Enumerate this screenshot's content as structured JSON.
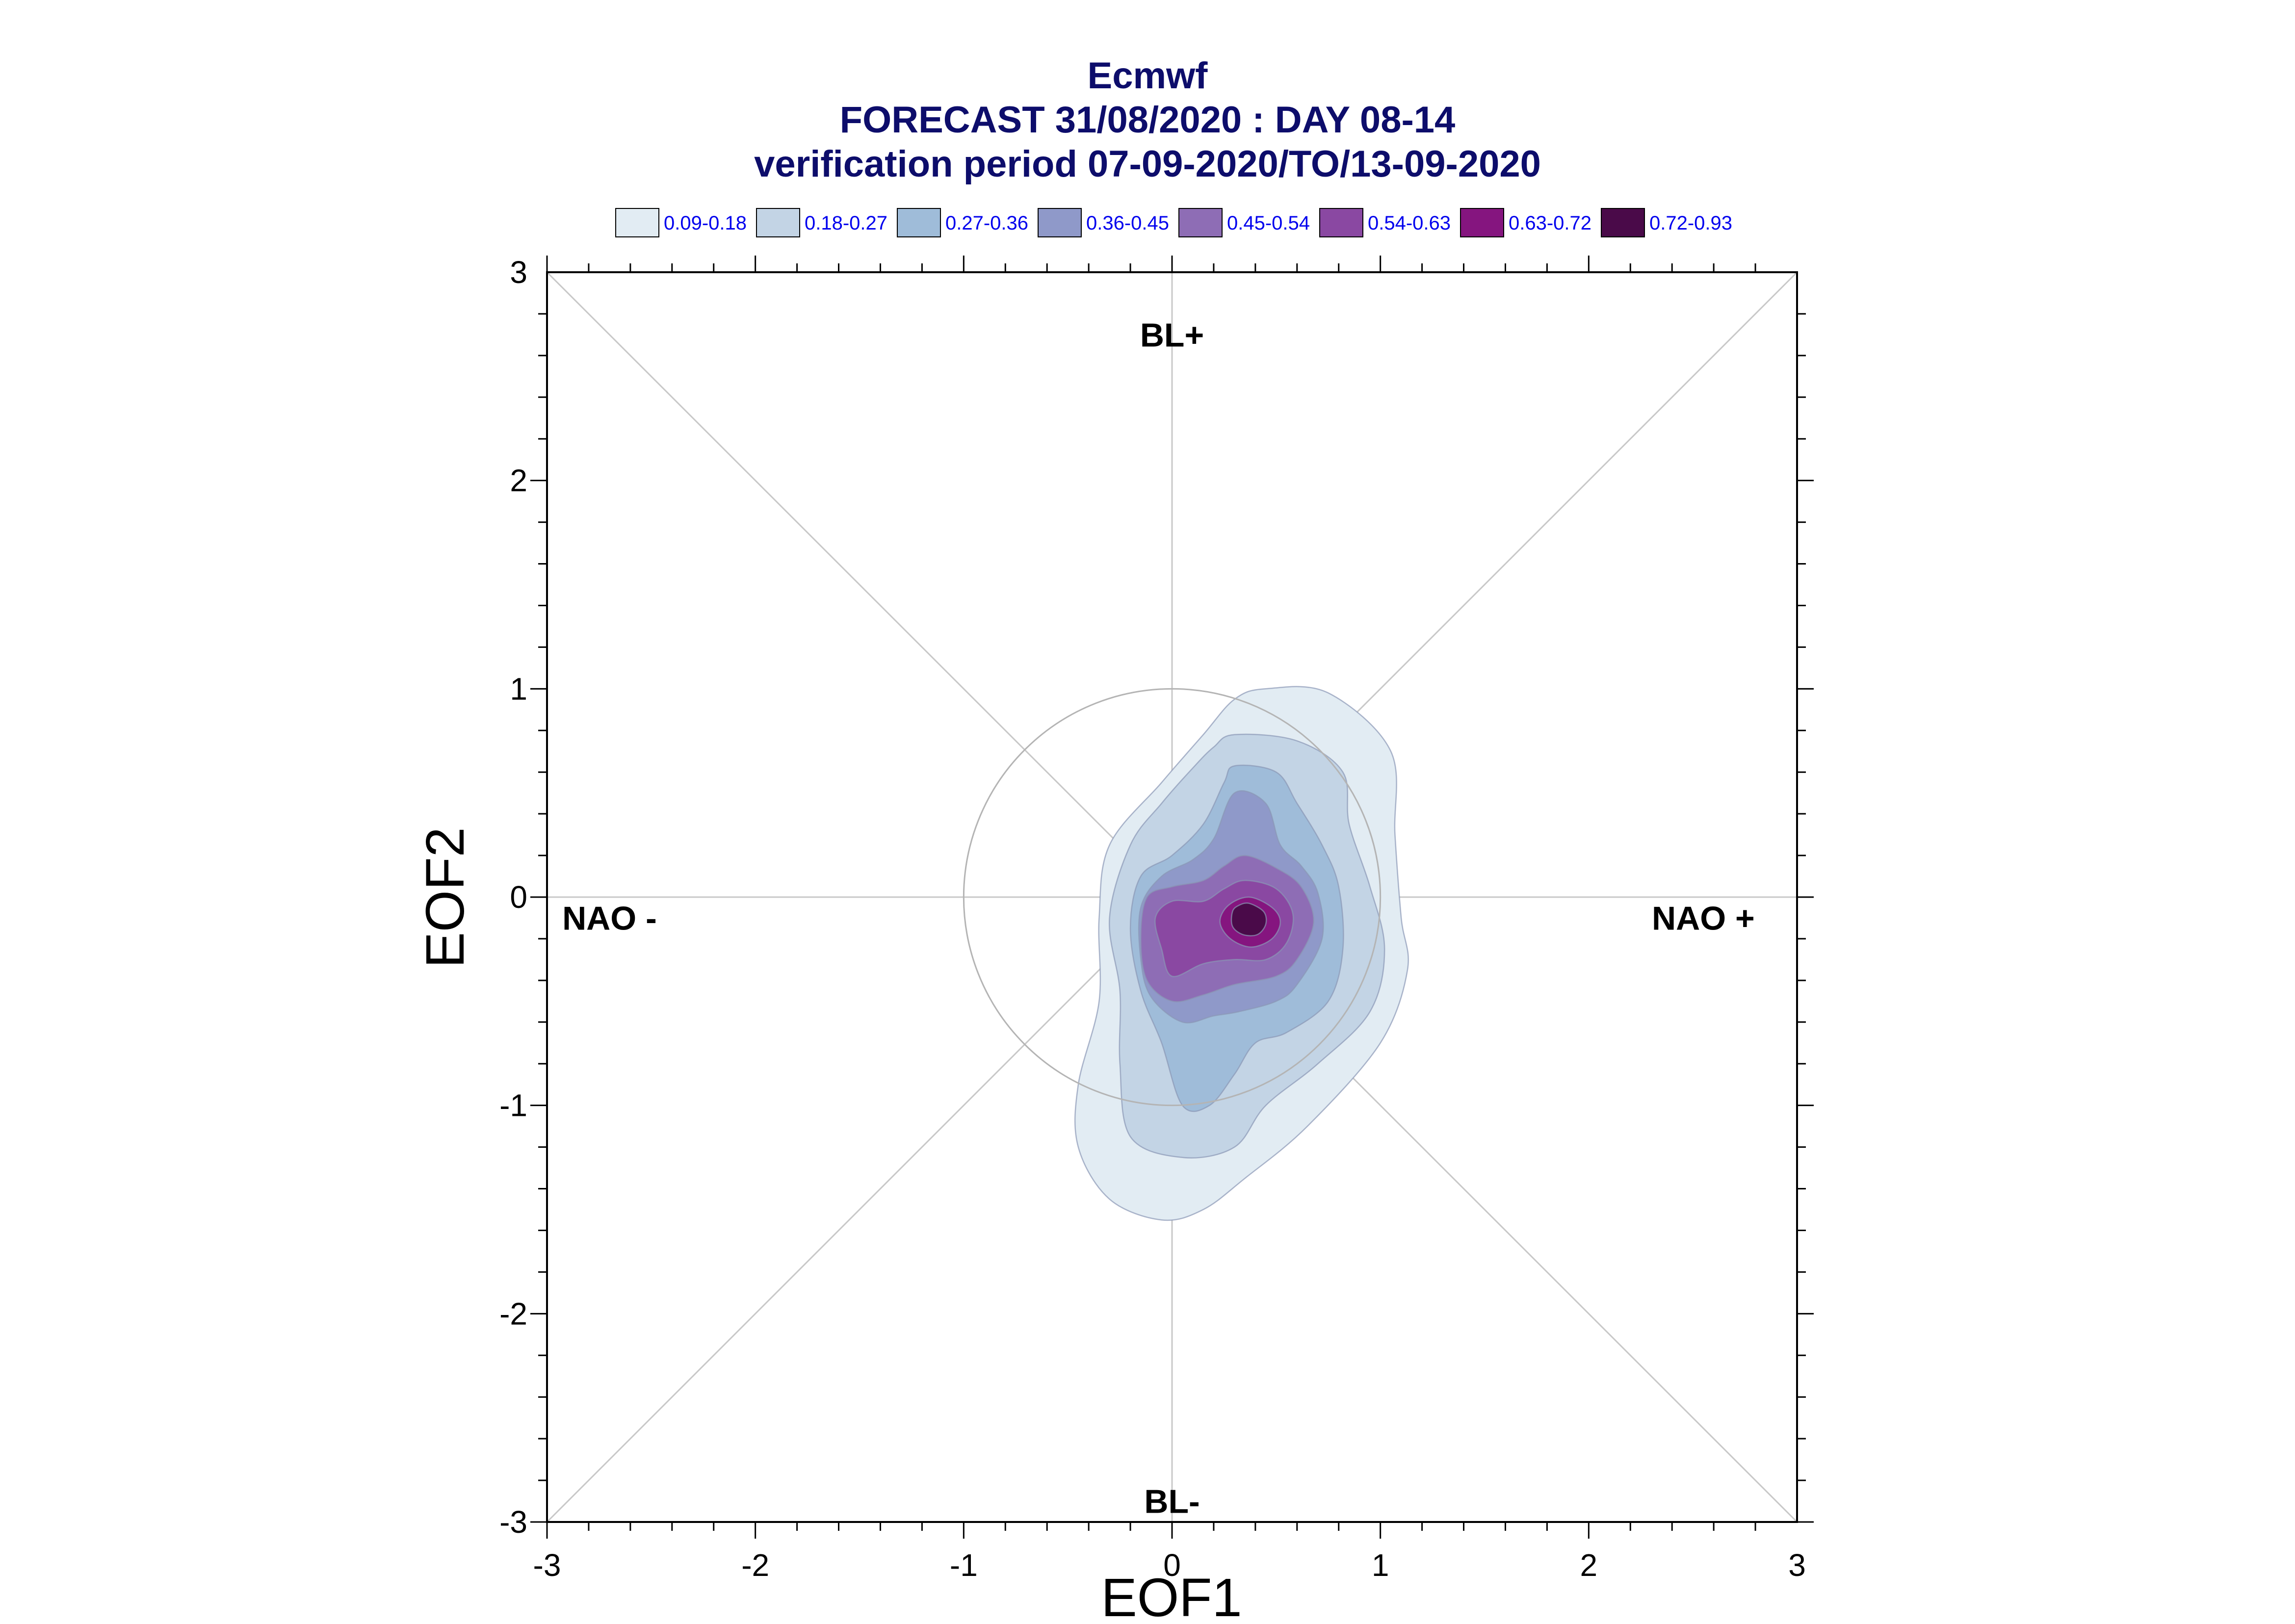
{
  "titles": [
    "Ecmwf",
    "FORECAST 31/08/2020 : DAY 08-14",
    "verification period 07-09-2020/TO/13-09-2020"
  ],
  "chart_data": {
    "type": "contour",
    "xlabel": "EOF1",
    "ylabel": "EOF2",
    "xlim": [
      -3,
      3
    ],
    "ylim": [
      -3,
      3
    ],
    "x_ticks": [
      "-3",
      "-2",
      "-1",
      "0",
      "1",
      "2",
      "3"
    ],
    "y_ticks": [
      "3",
      "2",
      "1",
      "0",
      "-1",
      "-2",
      "-3"
    ],
    "grid": false,
    "reference_circle_radius": 1,
    "regimes": [
      {
        "label": "BL+",
        "x": 0.0,
        "y": 2.7
      },
      {
        "label": "BL-",
        "x": 0.0,
        "y": -2.9
      },
      {
        "label": "NAO -",
        "x": -2.7,
        "y": -0.1
      },
      {
        "label": "NAO +",
        "x": 2.55,
        "y": -0.1
      }
    ],
    "legend_position": "top",
    "levels": [
      {
        "label": "0.09-0.18",
        "color": "#e2ecf3"
      },
      {
        "label": "0.18-0.27",
        "color": "#c3d4e5"
      },
      {
        "label": "0.27-0.36",
        "color": "#9fbcd9"
      },
      {
        "label": "0.36-0.45",
        "color": "#8f99c9"
      },
      {
        "label": "0.45-0.54",
        "color": "#8e6db5"
      },
      {
        "label": "0.54-0.63",
        "color": "#8a48a2"
      },
      {
        "label": "0.63-0.72",
        "color": "#85157f"
      },
      {
        "label": "0.72-0.93",
        "color": "#4a0a49"
      }
    ],
    "contours": [
      {
        "level": "0.09-0.18",
        "points": [
          [
            0.45,
            1.0
          ],
          [
            0.75,
            0.98
          ],
          [
            1.05,
            0.7
          ],
          [
            1.07,
            0.3
          ],
          [
            1.1,
            -0.1
          ],
          [
            1.13,
            -0.35
          ],
          [
            1.0,
            -0.7
          ],
          [
            0.65,
            -1.1
          ],
          [
            0.35,
            -1.35
          ],
          [
            0.15,
            -1.5
          ],
          [
            -0.05,
            -1.55
          ],
          [
            -0.3,
            -1.45
          ],
          [
            -0.45,
            -1.2
          ],
          [
            -0.45,
            -0.9
          ],
          [
            -0.35,
            -0.5
          ],
          [
            -0.35,
            -0.1
          ],
          [
            -0.3,
            0.25
          ],
          [
            -0.05,
            0.55
          ],
          [
            0.15,
            0.78
          ],
          [
            0.3,
            0.95
          ]
        ]
      },
      {
        "level": "0.18-0.27",
        "points": [
          [
            0.3,
            0.78
          ],
          [
            0.6,
            0.75
          ],
          [
            0.82,
            0.6
          ],
          [
            0.85,
            0.35
          ],
          [
            0.95,
            0.05
          ],
          [
            1.02,
            -0.25
          ],
          [
            0.95,
            -0.55
          ],
          [
            0.7,
            -0.8
          ],
          [
            0.45,
            -1.0
          ],
          [
            0.3,
            -1.2
          ],
          [
            0.05,
            -1.25
          ],
          [
            -0.2,
            -1.15
          ],
          [
            -0.25,
            -0.8
          ],
          [
            -0.25,
            -0.45
          ],
          [
            -0.3,
            -0.1
          ],
          [
            -0.2,
            0.25
          ],
          [
            -0.05,
            0.45
          ],
          [
            0.1,
            0.62
          ],
          [
            0.2,
            0.72
          ]
        ]
      },
      {
        "level": "0.27-0.36",
        "points": [
          [
            0.3,
            0.63
          ],
          [
            0.5,
            0.6
          ],
          [
            0.6,
            0.45
          ],
          [
            0.72,
            0.25
          ],
          [
            0.8,
            0.05
          ],
          [
            0.82,
            -0.25
          ],
          [
            0.75,
            -0.5
          ],
          [
            0.55,
            -0.65
          ],
          [
            0.4,
            -0.7
          ],
          [
            0.3,
            -0.85
          ],
          [
            0.18,
            -1.0
          ],
          [
            0.05,
            -1.0
          ],
          [
            -0.05,
            -0.7
          ],
          [
            -0.15,
            -0.45
          ],
          [
            -0.2,
            -0.15
          ],
          [
            -0.15,
            0.1
          ],
          [
            0.0,
            0.2
          ],
          [
            0.15,
            0.35
          ],
          [
            0.25,
            0.55
          ]
        ]
      },
      {
        "level": "0.36-0.45",
        "points": [
          [
            0.3,
            0.5
          ],
          [
            0.45,
            0.45
          ],
          [
            0.52,
            0.25
          ],
          [
            0.62,
            0.15
          ],
          [
            0.7,
            0.02
          ],
          [
            0.72,
            -0.2
          ],
          [
            0.6,
            -0.42
          ],
          [
            0.5,
            -0.5
          ],
          [
            0.32,
            -0.55
          ],
          [
            0.2,
            -0.57
          ],
          [
            0.05,
            -0.6
          ],
          [
            -0.1,
            -0.48
          ],
          [
            -0.15,
            -0.3
          ],
          [
            -0.15,
            -0.05
          ],
          [
            -0.05,
            0.1
          ],
          [
            0.1,
            0.18
          ],
          [
            0.2,
            0.28
          ]
        ]
      },
      {
        "level": "0.45-0.54",
        "points": [
          [
            0.35,
            0.2
          ],
          [
            0.5,
            0.14
          ],
          [
            0.62,
            0.05
          ],
          [
            0.68,
            -0.12
          ],
          [
            0.6,
            -0.3
          ],
          [
            0.5,
            -0.38
          ],
          [
            0.3,
            -0.42
          ],
          [
            0.15,
            -0.47
          ],
          [
            0.0,
            -0.5
          ],
          [
            -0.12,
            -0.4
          ],
          [
            -0.15,
            -0.2
          ],
          [
            -0.12,
            0.0
          ],
          [
            0.0,
            0.05
          ],
          [
            0.15,
            0.08
          ],
          [
            0.25,
            0.15
          ]
        ]
      },
      {
        "level": "0.54-0.63",
        "points": [
          [
            0.35,
            0.08
          ],
          [
            0.5,
            0.04
          ],
          [
            0.58,
            -0.08
          ],
          [
            0.55,
            -0.22
          ],
          [
            0.45,
            -0.3
          ],
          [
            0.3,
            -0.3
          ],
          [
            0.15,
            -0.32
          ],
          [
            0.0,
            -0.38
          ],
          [
            -0.05,
            -0.25
          ],
          [
            -0.08,
            -0.1
          ],
          [
            0.0,
            -0.02
          ],
          [
            0.15,
            -0.02
          ],
          [
            0.25,
            0.04
          ]
        ]
      },
      {
        "level": "0.63-0.72",
        "points": [
          [
            0.37,
            -0.0
          ],
          [
            0.48,
            -0.05
          ],
          [
            0.52,
            -0.12
          ],
          [
            0.48,
            -0.2
          ],
          [
            0.38,
            -0.24
          ],
          [
            0.28,
            -0.2
          ],
          [
            0.23,
            -0.12
          ],
          [
            0.27,
            -0.04
          ]
        ]
      },
      {
        "level": "0.72-0.93",
        "points": [
          [
            0.37,
            -0.03
          ],
          [
            0.44,
            -0.07
          ],
          [
            0.45,
            -0.13
          ],
          [
            0.41,
            -0.18
          ],
          [
            0.34,
            -0.18
          ],
          [
            0.29,
            -0.14
          ],
          [
            0.29,
            -0.07
          ],
          [
            0.32,
            -0.04
          ]
        ]
      }
    ]
  }
}
